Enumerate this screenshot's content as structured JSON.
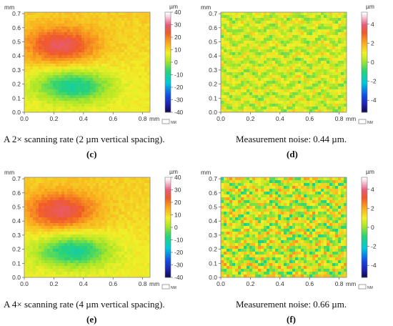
{
  "panels": [
    {
      "id": "c",
      "kind": "height",
      "caption": "A 2× scanning rate (2 µm vertical spacing).",
      "letter": "(c)",
      "axis_unit_y": "mm",
      "axis_unit_x": "mm",
      "x_ticks": [
        "0.0",
        "0.2",
        "0.4",
        "0.6",
        "0.8"
      ],
      "y_ticks": [
        "0.0",
        "0.1",
        "0.2",
        "0.3",
        "0.4",
        "0.5",
        "0.6",
        "0.7"
      ],
      "colorbar_unit": "µm",
      "colorbar_ticks": [
        "40",
        "30",
        "20",
        "10",
        "0",
        "-10",
        "-20",
        "-30",
        "-40"
      ],
      "nm_label": "NM"
    },
    {
      "id": "d",
      "kind": "noise",
      "caption": "Measurement noise: 0.44 µm.",
      "letter": "(d)",
      "axis_unit_y": "mm",
      "axis_unit_x": "mm",
      "x_ticks": [
        "0.0",
        "0.2",
        "0.4",
        "0.6",
        "0.8"
      ],
      "y_ticks": [
        "0.0",
        "0.1",
        "0.2",
        "0.3",
        "0.4",
        "0.5",
        "0.6",
        "0.7"
      ],
      "colorbar_unit": "µm",
      "colorbar_ticks": [
        "4",
        "2",
        "0",
        "-2",
        "-4"
      ],
      "nm_label": "NM"
    },
    {
      "id": "e",
      "kind": "height",
      "caption": "A 4× scanning rate (4 µm vertical spacing).",
      "letter": "(e)",
      "axis_unit_y": "mm",
      "axis_unit_x": "mm",
      "x_ticks": [
        "0.0",
        "0.2",
        "0.4",
        "0.6",
        "0.8"
      ],
      "y_ticks": [
        "0.0",
        "0.1",
        "0.2",
        "0.3",
        "0.4",
        "0.5",
        "0.6",
        "0.7"
      ],
      "colorbar_unit": "µm",
      "colorbar_ticks": [
        "40",
        "30",
        "20",
        "10",
        "0",
        "-10",
        "-20",
        "-30",
        "-40"
      ],
      "nm_label": "NM"
    },
    {
      "id": "f",
      "kind": "noise",
      "caption": "Measurement noise: 0.66 µm.",
      "letter": "(f)",
      "axis_unit_y": "mm",
      "axis_unit_x": "mm",
      "x_ticks": [
        "0.0",
        "0.2",
        "0.4",
        "0.6",
        "0.8"
      ],
      "y_ticks": [
        "0.0",
        "0.1",
        "0.2",
        "0.3",
        "0.4",
        "0.5",
        "0.6",
        "0.7"
      ],
      "colorbar_unit": "µm",
      "colorbar_ticks": [
        "4",
        "2",
        "0",
        "-2",
        "-4"
      ],
      "nm_label": "NM"
    }
  ]
}
